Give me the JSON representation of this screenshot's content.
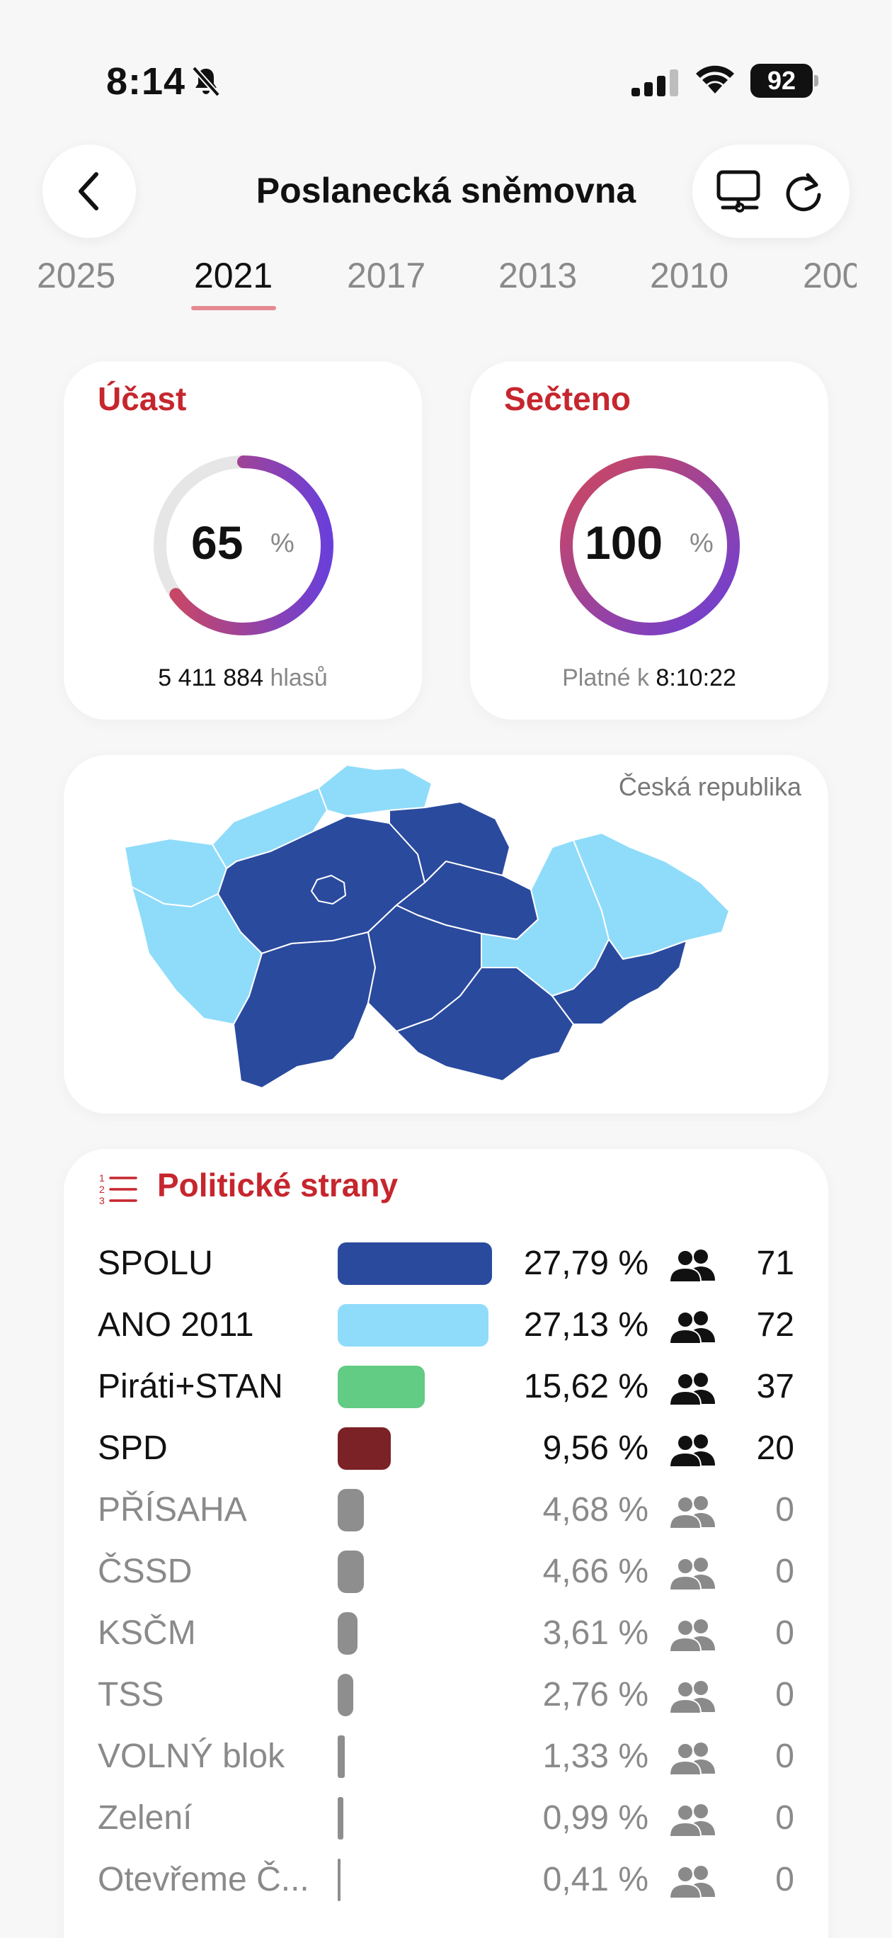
{
  "status_bar": {
    "time": "8:14",
    "battery": "92"
  },
  "header": {
    "title": "Poslanecká sněmovna"
  },
  "years": [
    "2025",
    "2021",
    "2017",
    "2013",
    "2010",
    "200"
  ],
  "active_year": "2021",
  "turnout": {
    "title": "Účast",
    "value": "65",
    "unit": "%",
    "votes": "5 411 884",
    "votes_unit": "hlasů",
    "fraction": 0.65
  },
  "counted": {
    "title": "Sečteno",
    "value": "100",
    "unit": "%",
    "valid_prefix": "Platné k",
    "valid_time": "8:10:22",
    "fraction": 1.0
  },
  "map": {
    "label": "Česká republika"
  },
  "parties": {
    "title": "Politické strany",
    "rows": [
      {
        "name": "SPOLU",
        "pct": "27,79 %",
        "seats": "71",
        "share": 27.79,
        "color": "#2a4a9e",
        "dim": false
      },
      {
        "name": "ANO 2011",
        "pct": "27,13 %",
        "seats": "72",
        "share": 27.13,
        "color": "#8fdcfa",
        "dim": false
      },
      {
        "name": "Piráti+STAN",
        "pct": "15,62 %",
        "seats": "37",
        "share": 15.62,
        "color": "#62cb84",
        "dim": false
      },
      {
        "name": "SPD",
        "pct": "9,56 %",
        "seats": "20",
        "share": 9.56,
        "color": "#7a2226",
        "dim": false
      },
      {
        "name": "PŘÍSAHA",
        "pct": "4,68 %",
        "seats": "0",
        "share": 4.68,
        "color": "#8e8e8e",
        "dim": true
      },
      {
        "name": "ČSSD",
        "pct": "4,66 %",
        "seats": "0",
        "share": 4.66,
        "color": "#8e8e8e",
        "dim": true
      },
      {
        "name": "KSČM",
        "pct": "3,61 %",
        "seats": "0",
        "share": 3.61,
        "color": "#8e8e8e",
        "dim": true
      },
      {
        "name": "TSS",
        "pct": "2,76 %",
        "seats": "0",
        "share": 2.76,
        "color": "#8e8e8e",
        "dim": true
      },
      {
        "name": "VOLNÝ blok",
        "pct": "1,33 %",
        "seats": "0",
        "share": 1.33,
        "color": "#8e8e8e",
        "dim": true
      },
      {
        "name": "Zelení",
        "pct": "0,99 %",
        "seats": "0",
        "share": 0.99,
        "color": "#8e8e8e",
        "dim": true
      },
      {
        "name": "Otevřeme Č...",
        "pct": "0,41 %",
        "seats": "0",
        "share": 0.41,
        "color": "#8e8e8e",
        "dim": true
      }
    ]
  }
}
